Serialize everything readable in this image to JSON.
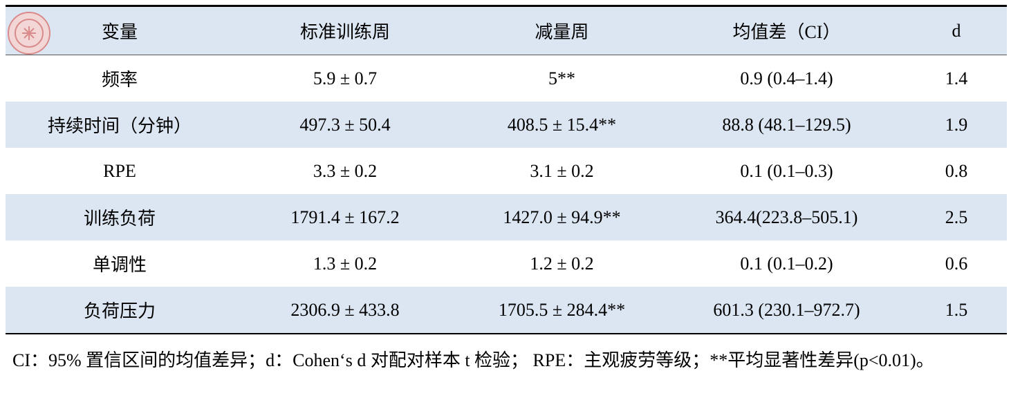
{
  "table": {
    "header": [
      "变量",
      "标准训练周",
      "减量周",
      "均值差（CI）",
      "d"
    ],
    "rows": [
      [
        "频率",
        "5.9 ± 0.7",
        "5**",
        "0.9 (0.4–1.4)",
        "1.4"
      ],
      [
        "持续时间（分钟）",
        "497.3 ± 50.4",
        "408.5 ± 15.4**",
        "88.8 (48.1–129.5)",
        "1.9"
      ],
      [
        "RPE",
        "3.3 ± 0.2",
        "3.1 ± 0.2",
        "0.1 (0.1–0.3)",
        "0.8"
      ],
      [
        "训练负荷",
        "1791.4 ± 167.2",
        "1427.0 ± 94.9**",
        "364.4(223.8–505.1)",
        "2.5"
      ],
      [
        "单调性",
        "1.3 ± 0.2",
        "1.2 ± 0.2",
        "0.1 (0.1–0.2)",
        "0.6"
      ],
      [
        "负荷压力",
        "2306.9 ± 433.8",
        "1705.5 ± 284.4**",
        "601.3 (230.1–972.7)",
        "1.5"
      ]
    ],
    "footnote": "CI：95%  置信区间的均值差异；d：Cohen‘s d 对配对样本 t 检验；   RPE：主观疲劳等级；**平均显著性差异(p<0.01)。"
  }
}
